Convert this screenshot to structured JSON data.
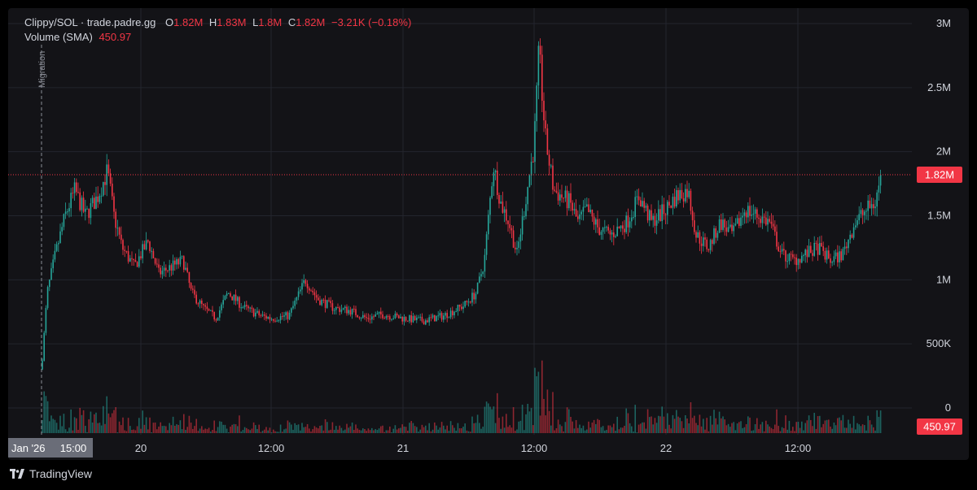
{
  "legend": {
    "symbol": "Clippy/SOL · trade.padre.gg",
    "o_label": "O",
    "o_value": "1.82M",
    "h_label": "H",
    "h_value": "1.83M",
    "l_label": "L",
    "l_value": "1.8M",
    "c_label": "C",
    "c_value": "1.82M",
    "change": "−3.21K (−0.18%)",
    "volume_label": "Volume (SMA)",
    "volume_value": "450.97"
  },
  "annotation": {
    "migration_label": "Migration"
  },
  "branding": {
    "name": "TradingView",
    "logo_icon": "tradingview-logo-icon"
  },
  "colors": {
    "up": "#26a69a",
    "down": "#f23645",
    "bg": "#131317",
    "grid": "#23252d",
    "text": "#d1d4dc"
  },
  "chart_data": {
    "type": "candlestick",
    "y_axis": {
      "ticks": [
        "3M",
        "2.5M",
        "2M",
        "1.5M",
        "1M",
        "500K",
        "0"
      ],
      "tick_values": [
        3000000,
        2500000,
        2000000,
        1500000,
        1000000,
        500000,
        0
      ]
    },
    "x_axis": {
      "first_label": "Jan '26",
      "ticks": [
        "15:00",
        "20",
        "12:00",
        "21",
        "12:00",
        "22",
        "12:00"
      ]
    },
    "last_price": {
      "value": 1820000,
      "label": "1.82M"
    },
    "last_volume": {
      "label": "450.97"
    },
    "key_points": [
      {
        "t": "start",
        "price": 300000
      },
      {
        "t": "early-high",
        "price": 1850000
      },
      {
        "t": "20",
        "price": 1150000
      },
      {
        "t": "20 12:00",
        "price": 700000
      },
      {
        "t": "21",
        "price": 650000
      },
      {
        "t": "21 08:00",
        "price": 1900000
      },
      {
        "t": "21 12:00",
        "price": 2780000
      },
      {
        "t": "22",
        "price": 1550000
      },
      {
        "t": "22 12:00",
        "price": 1150000
      },
      {
        "t": "end",
        "price": 1820000
      }
    ]
  }
}
